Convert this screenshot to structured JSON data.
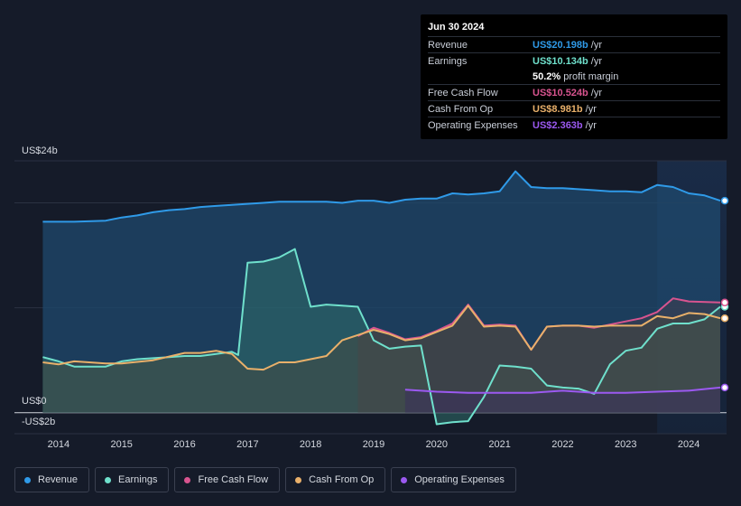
{
  "tooltip": {
    "date": "Jun 30 2024",
    "rows": [
      {
        "label": "Revenue",
        "value": "US$20.198b",
        "unit": "/yr",
        "color": "#2f9ae8"
      },
      {
        "label": "Earnings",
        "value": "US$10.134b",
        "unit": "/yr",
        "color": "#6fe0cc"
      },
      {
        "label": "",
        "value": "50.2%",
        "unit": "profit margin",
        "color": "#ffffff"
      },
      {
        "label": "Free Cash Flow",
        "value": "US$10.524b",
        "unit": "/yr",
        "color": "#d8548f"
      },
      {
        "label": "Cash From Op",
        "value": "US$8.981b",
        "unit": "/yr",
        "color": "#e9b06a"
      },
      {
        "label": "Operating Expenses",
        "value": "US$2.363b",
        "unit": "/yr",
        "color": "#9b59f0"
      }
    ]
  },
  "legend": [
    {
      "label": "Revenue",
      "color": "#2f9ae8"
    },
    {
      "label": "Earnings",
      "color": "#6fe0cc"
    },
    {
      "label": "Free Cash Flow",
      "color": "#d8548f"
    },
    {
      "label": "Cash From Op",
      "color": "#e9b06a"
    },
    {
      "label": "Operating Expenses",
      "color": "#9b59f0"
    }
  ],
  "chart_data": {
    "type": "area",
    "title": "",
    "xlabel": "",
    "ylabel": "",
    "unit": "US$ billions",
    "y_axis_labels": {
      "top": "US$24b",
      "zero": "US$0",
      "bottom": "-US$2b"
    },
    "ylim": [
      -2,
      24
    ],
    "xlim": [
      2013.3,
      2024.6
    ],
    "x_ticks": [
      2014,
      2015,
      2016,
      2017,
      2018,
      2019,
      2020,
      2021,
      2022,
      2023,
      2024
    ],
    "x_tick_labels": [
      "2014",
      "2015",
      "2016",
      "2017",
      "2018",
      "2019",
      "2020",
      "2021",
      "2022",
      "2023",
      "2024"
    ],
    "highlight_start": 2023.5,
    "series": [
      {
        "name": "Revenue",
        "color": "#2f9ae8",
        "points": [
          [
            2013.75,
            18.2
          ],
          [
            2014.25,
            18.2
          ],
          [
            2014.75,
            18.3
          ],
          [
            2015.0,
            18.6
          ],
          [
            2015.25,
            18.8
          ],
          [
            2015.5,
            19.1
          ],
          [
            2015.75,
            19.3
          ],
          [
            2016.0,
            19.4
          ],
          [
            2016.25,
            19.6
          ],
          [
            2016.5,
            19.7
          ],
          [
            2016.75,
            19.8
          ],
          [
            2017.0,
            19.9
          ],
          [
            2017.25,
            20.0
          ],
          [
            2017.5,
            20.1
          ],
          [
            2017.75,
            20.1
          ],
          [
            2018.0,
            20.1
          ],
          [
            2018.25,
            20.1
          ],
          [
            2018.5,
            20.0
          ],
          [
            2018.75,
            20.2
          ],
          [
            2019.0,
            20.2
          ],
          [
            2019.25,
            20.0
          ],
          [
            2019.5,
            20.3
          ],
          [
            2019.75,
            20.4
          ],
          [
            2020.0,
            20.4
          ],
          [
            2020.25,
            20.9
          ],
          [
            2020.5,
            20.8
          ],
          [
            2020.75,
            20.9
          ],
          [
            2021.0,
            21.1
          ],
          [
            2021.25,
            23.0
          ],
          [
            2021.5,
            21.5
          ],
          [
            2021.75,
            21.4
          ],
          [
            2022.0,
            21.4
          ],
          [
            2022.25,
            21.3
          ],
          [
            2022.5,
            21.2
          ],
          [
            2022.75,
            21.1
          ],
          [
            2023.0,
            21.1
          ],
          [
            2023.25,
            21.0
          ],
          [
            2023.5,
            21.7
          ],
          [
            2023.75,
            21.5
          ],
          [
            2024.0,
            20.9
          ],
          [
            2024.25,
            20.7
          ],
          [
            2024.5,
            20.2
          ]
        ]
      },
      {
        "name": "Earnings",
        "color": "#6fe0cc",
        "points": [
          [
            2013.75,
            5.3
          ],
          [
            2014.0,
            4.9
          ],
          [
            2014.25,
            4.4
          ],
          [
            2014.75,
            4.4
          ],
          [
            2015.0,
            4.9
          ],
          [
            2015.25,
            5.1
          ],
          [
            2015.5,
            5.2
          ],
          [
            2015.75,
            5.3
          ],
          [
            2016.0,
            5.4
          ],
          [
            2016.25,
            5.4
          ],
          [
            2016.5,
            5.6
          ],
          [
            2016.75,
            5.8
          ],
          [
            2016.85,
            5.5
          ],
          [
            2017.0,
            14.3
          ],
          [
            2017.25,
            14.4
          ],
          [
            2017.5,
            14.8
          ],
          [
            2017.75,
            15.6
          ],
          [
            2018.0,
            10.1
          ],
          [
            2018.25,
            10.3
          ],
          [
            2018.5,
            10.2
          ],
          [
            2018.75,
            10.1
          ],
          [
            2019.0,
            6.9
          ],
          [
            2019.25,
            6.1
          ],
          [
            2019.5,
            6.3
          ],
          [
            2019.75,
            6.4
          ],
          [
            2020.0,
            -1.1
          ],
          [
            2020.25,
            -0.9
          ],
          [
            2020.5,
            -0.8
          ],
          [
            2020.75,
            1.5
          ],
          [
            2021.0,
            4.5
          ],
          [
            2021.25,
            4.4
          ],
          [
            2021.5,
            4.2
          ],
          [
            2021.75,
            2.6
          ],
          [
            2022.0,
            2.4
          ],
          [
            2022.25,
            2.3
          ],
          [
            2022.5,
            1.8
          ],
          [
            2022.75,
            4.6
          ],
          [
            2023.0,
            5.9
          ],
          [
            2023.25,
            6.2
          ],
          [
            2023.5,
            8.0
          ],
          [
            2023.75,
            8.5
          ],
          [
            2024.0,
            8.5
          ],
          [
            2024.25,
            8.9
          ],
          [
            2024.5,
            10.1
          ]
        ]
      },
      {
        "name": "Free Cash Flow",
        "color": "#d8548f",
        "points": [
          [
            2018.75,
            7.3
          ],
          [
            2019.0,
            8.1
          ],
          [
            2019.25,
            7.6
          ],
          [
            2019.5,
            7.0
          ],
          [
            2019.75,
            7.2
          ],
          [
            2020.0,
            7.8
          ],
          [
            2020.25,
            8.5
          ],
          [
            2020.5,
            10.3
          ],
          [
            2020.75,
            8.3
          ],
          [
            2021.0,
            8.4
          ],
          [
            2021.25,
            8.3
          ],
          [
            2021.5,
            6.0
          ],
          [
            2021.75,
            8.2
          ],
          [
            2022.0,
            8.3
          ],
          [
            2022.25,
            8.3
          ],
          [
            2022.5,
            8.1
          ],
          [
            2022.75,
            8.4
          ],
          [
            2023.0,
            8.7
          ],
          [
            2023.25,
            9.0
          ],
          [
            2023.5,
            9.6
          ],
          [
            2023.75,
            10.9
          ],
          [
            2024.0,
            10.6
          ],
          [
            2024.5,
            10.5
          ]
        ]
      },
      {
        "name": "Cash From Op",
        "color": "#e9b06a",
        "points": [
          [
            2013.75,
            4.8
          ],
          [
            2014.0,
            4.6
          ],
          [
            2014.25,
            4.9
          ],
          [
            2014.75,
            4.7
          ],
          [
            2015.0,
            4.7
          ],
          [
            2015.5,
            5.0
          ],
          [
            2016.0,
            5.7
          ],
          [
            2016.25,
            5.7
          ],
          [
            2016.5,
            5.9
          ],
          [
            2016.75,
            5.6
          ],
          [
            2017.0,
            4.2
          ],
          [
            2017.25,
            4.1
          ],
          [
            2017.5,
            4.8
          ],
          [
            2017.75,
            4.8
          ],
          [
            2018.0,
            5.1
          ],
          [
            2018.25,
            5.4
          ],
          [
            2018.5,
            6.9
          ],
          [
            2018.75,
            7.4
          ],
          [
            2019.0,
            7.9
          ],
          [
            2019.25,
            7.5
          ],
          [
            2019.5,
            6.9
          ],
          [
            2019.75,
            7.1
          ],
          [
            2020.0,
            7.7
          ],
          [
            2020.25,
            8.3
          ],
          [
            2020.5,
            10.2
          ],
          [
            2020.75,
            8.2
          ],
          [
            2021.0,
            8.3
          ],
          [
            2021.25,
            8.2
          ],
          [
            2021.5,
            6.0
          ],
          [
            2021.75,
            8.2
          ],
          [
            2022.0,
            8.3
          ],
          [
            2022.25,
            8.3
          ],
          [
            2022.5,
            8.2
          ],
          [
            2022.75,
            8.3
          ],
          [
            2023.0,
            8.3
          ],
          [
            2023.25,
            8.3
          ],
          [
            2023.5,
            9.2
          ],
          [
            2023.75,
            9.0
          ],
          [
            2024.0,
            9.5
          ],
          [
            2024.25,
            9.4
          ],
          [
            2024.5,
            9.0
          ]
        ]
      },
      {
        "name": "Operating Expenses",
        "color": "#9b59f0",
        "points": [
          [
            2019.5,
            2.2
          ],
          [
            2020.0,
            2.0
          ],
          [
            2020.5,
            1.9
          ],
          [
            2021.0,
            1.9
          ],
          [
            2021.5,
            1.9
          ],
          [
            2022.0,
            2.1
          ],
          [
            2022.5,
            1.9
          ],
          [
            2023.0,
            1.9
          ],
          [
            2023.5,
            2.0
          ],
          [
            2024.0,
            2.1
          ],
          [
            2024.5,
            2.4
          ]
        ]
      }
    ]
  }
}
